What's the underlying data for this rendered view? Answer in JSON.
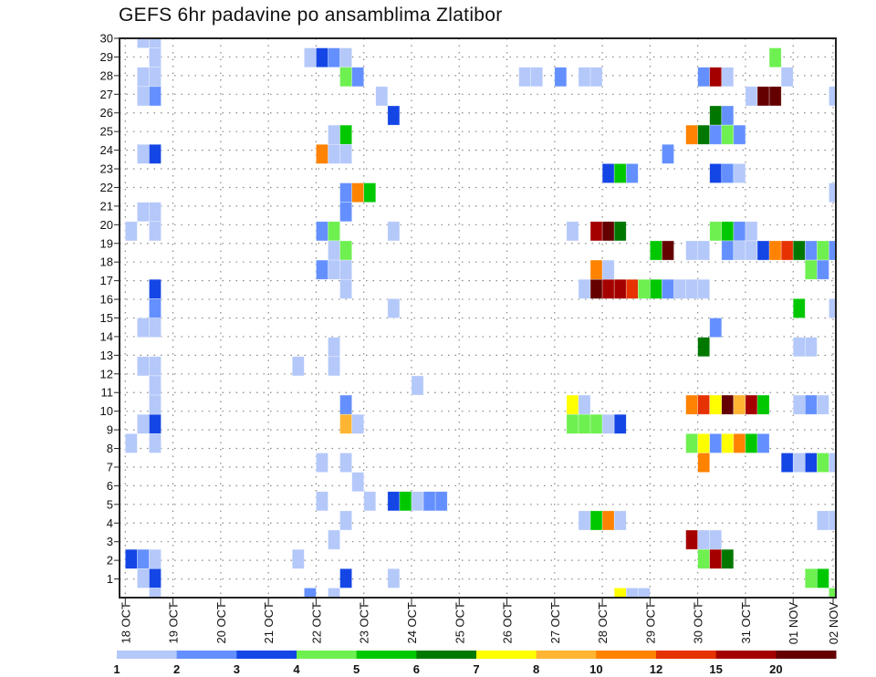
{
  "chart_data": {
    "type": "heatmap",
    "title": "GEFS 6hr padavine po ansamblima Zlatibor",
    "x_step_hours": 6,
    "x_tick_every_steps": 4,
    "x_tick_labels": [
      "18 OCT",
      "19 OCT",
      "20 OCT",
      "21 OCT",
      "22 OCT",
      "23 OCT",
      "24 OCT",
      "25 OCT",
      "26 OCT",
      "27 OCT",
      "28 OCT",
      "29 OCT",
      "30 OCT",
      "31 OCT",
      "01 NOV",
      "02 NOV"
    ],
    "xlim": [
      -0.5,
      59.6
    ],
    "y_tick_labels": [
      "1",
      "2",
      "3",
      "4",
      "5",
      "6",
      "7",
      "8",
      "9",
      "10",
      "11",
      "12",
      "13",
      "14",
      "15",
      "16",
      "17",
      "18",
      "19",
      "20",
      "21",
      "22",
      "23",
      "24",
      "25",
      "26",
      "27",
      "28",
      "29",
      "30"
    ],
    "ylim": [
      0,
      30
    ],
    "grid": true,
    "legend": {
      "placement": "bottom",
      "levels": [
        1,
        2,
        3,
        4,
        5,
        6,
        7,
        8,
        10,
        12,
        15,
        20
      ],
      "labels": [
        "1",
        "2",
        "3",
        "4",
        "5",
        "6",
        "7",
        "8",
        "10",
        "12",
        "15",
        "20"
      ],
      "colors": [
        "#b4c8fa",
        "#6490ff",
        "#1446e6",
        "#6ef050",
        "#00c800",
        "#007800",
        "#ffff00",
        "#ffb432",
        "#ff8200",
        "#e63200",
        "#a50000",
        "#640000"
      ]
    },
    "cells_format": "[time_step, member, level_lower_bound]",
    "cells": [
      [
        1,
        30,
        1
      ],
      [
        2,
        30,
        1
      ],
      [
        2,
        29,
        1
      ],
      [
        15,
        29,
        1
      ],
      [
        16,
        29,
        3
      ],
      [
        17,
        29,
        2
      ],
      [
        18,
        29,
        1
      ],
      [
        54,
        29,
        4
      ],
      [
        1,
        28,
        1
      ],
      [
        2,
        28,
        1
      ],
      [
        18,
        28,
        4
      ],
      [
        19,
        28,
        2
      ],
      [
        33,
        28,
        1
      ],
      [
        34,
        28,
        1
      ],
      [
        36,
        28,
        2
      ],
      [
        38,
        28,
        1
      ],
      [
        39,
        28,
        1
      ],
      [
        48,
        28,
        2
      ],
      [
        49,
        28,
        15
      ],
      [
        50,
        28,
        1
      ],
      [
        55,
        28,
        1
      ],
      [
        1,
        27,
        1
      ],
      [
        2,
        27,
        2
      ],
      [
        21,
        27,
        1
      ],
      [
        52,
        27,
        1
      ],
      [
        53,
        27,
        20
      ],
      [
        54,
        27,
        20
      ],
      [
        59,
        27,
        1
      ],
      [
        22,
        26,
        3
      ],
      [
        49,
        26,
        6
      ],
      [
        50,
        26,
        2
      ],
      [
        17,
        25,
        1
      ],
      [
        18,
        25,
        5
      ],
      [
        47,
        25,
        10
      ],
      [
        48,
        25,
        6
      ],
      [
        49,
        25,
        2
      ],
      [
        50,
        25,
        4
      ],
      [
        51,
        25,
        2
      ],
      [
        1,
        24,
        1
      ],
      [
        2,
        24,
        3
      ],
      [
        16,
        24,
        10
      ],
      [
        17,
        24,
        1
      ],
      [
        18,
        24,
        1
      ],
      [
        45,
        24,
        2
      ],
      [
        40,
        23,
        3
      ],
      [
        41,
        23,
        5
      ],
      [
        42,
        23,
        2
      ],
      [
        49,
        23,
        3
      ],
      [
        50,
        23,
        2
      ],
      [
        51,
        23,
        1
      ],
      [
        18,
        22,
        2
      ],
      [
        19,
        22,
        10
      ],
      [
        20,
        22,
        5
      ],
      [
        59,
        22,
        1
      ],
      [
        1,
        21,
        1
      ],
      [
        2,
        21,
        1
      ],
      [
        18,
        21,
        2
      ],
      [
        0,
        20,
        1
      ],
      [
        2,
        20,
        1
      ],
      [
        16,
        20,
        2
      ],
      [
        17,
        20,
        4
      ],
      [
        22,
        20,
        1
      ],
      [
        37,
        20,
        1
      ],
      [
        39,
        20,
        15
      ],
      [
        40,
        20,
        20
      ],
      [
        41,
        20,
        6
      ],
      [
        49,
        20,
        4
      ],
      [
        50,
        20,
        5
      ],
      [
        51,
        20,
        2
      ],
      [
        52,
        20,
        1
      ],
      [
        17,
        19,
        1
      ],
      [
        18,
        19,
        4
      ],
      [
        44,
        19,
        5
      ],
      [
        45,
        19,
        20
      ],
      [
        47,
        19,
        1
      ],
      [
        48,
        19,
        1
      ],
      [
        50,
        19,
        2
      ],
      [
        51,
        19,
        1
      ],
      [
        52,
        19,
        1
      ],
      [
        53,
        19,
        3
      ],
      [
        54,
        19,
        10
      ],
      [
        55,
        19,
        12
      ],
      [
        56,
        19,
        6
      ],
      [
        57,
        19,
        2
      ],
      [
        58,
        19,
        4
      ],
      [
        59,
        19,
        2
      ],
      [
        16,
        18,
        2
      ],
      [
        17,
        18,
        1
      ],
      [
        18,
        18,
        1
      ],
      [
        39,
        18,
        10
      ],
      [
        40,
        18,
        1
      ],
      [
        57,
        18,
        4
      ],
      [
        58,
        18,
        2
      ],
      [
        2,
        17,
        3
      ],
      [
        18,
        17,
        1
      ],
      [
        38,
        17,
        1
      ],
      [
        39,
        17,
        20
      ],
      [
        40,
        17,
        15
      ],
      [
        41,
        17,
        15
      ],
      [
        42,
        17,
        12
      ],
      [
        43,
        17,
        4
      ],
      [
        44,
        17,
        5
      ],
      [
        45,
        17,
        2
      ],
      [
        46,
        17,
        1
      ],
      [
        47,
        17,
        1
      ],
      [
        48,
        17,
        1
      ],
      [
        2,
        16,
        2
      ],
      [
        22,
        16,
        1
      ],
      [
        56,
        16,
        5
      ],
      [
        59,
        16,
        1
      ],
      [
        1,
        15,
        1
      ],
      [
        2,
        15,
        1
      ],
      [
        49,
        15,
        2
      ],
      [
        17,
        14,
        1
      ],
      [
        48,
        14,
        6
      ],
      [
        56,
        14,
        1
      ],
      [
        57,
        14,
        1
      ],
      [
        1,
        13,
        1
      ],
      [
        2,
        13,
        1
      ],
      [
        14,
        13,
        1
      ],
      [
        17,
        13,
        1
      ],
      [
        2,
        12,
        1
      ],
      [
        24,
        12,
        1
      ],
      [
        2,
        11,
        1
      ],
      [
        18,
        11,
        2
      ],
      [
        37,
        11,
        7
      ],
      [
        38,
        11,
        1
      ],
      [
        47,
        11,
        10
      ],
      [
        48,
        11,
        12
      ],
      [
        49,
        11,
        7
      ],
      [
        50,
        11,
        20
      ],
      [
        51,
        11,
        8
      ],
      [
        52,
        11,
        15
      ],
      [
        53,
        11,
        5
      ],
      [
        56,
        11,
        1
      ],
      [
        57,
        11,
        2
      ],
      [
        58,
        11,
        1
      ],
      [
        1,
        10,
        1
      ],
      [
        2,
        10,
        3
      ],
      [
        18,
        10,
        8
      ],
      [
        19,
        10,
        1
      ],
      [
        37,
        10,
        4
      ],
      [
        38,
        10,
        4
      ],
      [
        39,
        10,
        4
      ],
      [
        40,
        10,
        1
      ],
      [
        41,
        10,
        3
      ],
      [
        0,
        9,
        1
      ],
      [
        2,
        9,
        1
      ],
      [
        47,
        9,
        4
      ],
      [
        48,
        9,
        7
      ],
      [
        49,
        9,
        2
      ],
      [
        50,
        9,
        7
      ],
      [
        51,
        9,
        10
      ],
      [
        52,
        9,
        5
      ],
      [
        53,
        9,
        2
      ],
      [
        16,
        8,
        1
      ],
      [
        18,
        8,
        1
      ],
      [
        48,
        8,
        10
      ],
      [
        55,
        8,
        3
      ],
      [
        56,
        8,
        1
      ],
      [
        57,
        8,
        3
      ],
      [
        58,
        8,
        4
      ],
      [
        59,
        8,
        1
      ],
      [
        19,
        7,
        1
      ],
      [
        16,
        6,
        1
      ],
      [
        20,
        6,
        1
      ],
      [
        22,
        6,
        3
      ],
      [
        23,
        6,
        5
      ],
      [
        24,
        6,
        1
      ],
      [
        25,
        6,
        2
      ],
      [
        26,
        6,
        2
      ],
      [
        18,
        5,
        1
      ],
      [
        38,
        5,
        1
      ],
      [
        39,
        5,
        5
      ],
      [
        40,
        5,
        10
      ],
      [
        41,
        5,
        1
      ],
      [
        58,
        5,
        1
      ],
      [
        59,
        5,
        1
      ],
      [
        17,
        4,
        1
      ],
      [
        47,
        4,
        15
      ],
      [
        48,
        4,
        1
      ],
      [
        49,
        4,
        1
      ],
      [
        0,
        3,
        3
      ],
      [
        1,
        3,
        2
      ],
      [
        2,
        3,
        1
      ],
      [
        14,
        3,
        1
      ],
      [
        48,
        3,
        4
      ],
      [
        49,
        3,
        15
      ],
      [
        50,
        3,
        6
      ],
      [
        1,
        2,
        1
      ],
      [
        2,
        2,
        3
      ],
      [
        18,
        2,
        3
      ],
      [
        22,
        2,
        1
      ],
      [
        57,
        2,
        4
      ],
      [
        58,
        2,
        5
      ],
      [
        2,
        1,
        1
      ],
      [
        15,
        1,
        2
      ],
      [
        17,
        1,
        1
      ],
      [
        41,
        1,
        7
      ],
      [
        42,
        1,
        1
      ],
      [
        43,
        1,
        1
      ],
      [
        59,
        1,
        4
      ]
    ]
  }
}
